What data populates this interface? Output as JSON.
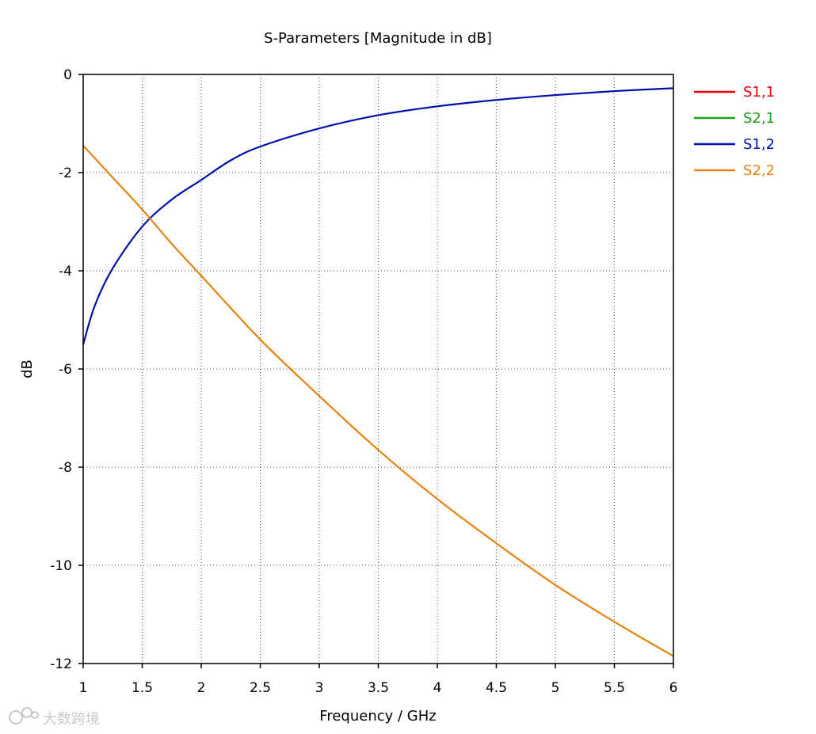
{
  "chart_data": {
    "type": "line",
    "title": "S-Parameters [Magnitude in dB]",
    "xlabel": "Frequency / GHz",
    "ylabel": "dB",
    "xlim": [
      1,
      6
    ],
    "ylim": [
      -12,
      0
    ],
    "xticks": [
      1,
      1.5,
      2,
      2.5,
      3,
      3.5,
      4,
      4.5,
      5,
      5.5,
      6
    ],
    "xtick_labels": [
      "1",
      "1.5",
      "2",
      "2.5",
      "3",
      "3.5",
      "4",
      "4.5",
      "5",
      "5.5",
      "6"
    ],
    "yticks": [
      0,
      -2,
      -4,
      -6,
      -8,
      -10,
      -12
    ],
    "ytick_labels": [
      "0",
      "-2",
      "-4",
      "-6",
      "-8",
      "-10",
      "-12"
    ],
    "grid": true,
    "legend_position": "right",
    "series": [
      {
        "name": "S1,1",
        "color": "#e8000b",
        "x": [],
        "values": []
      },
      {
        "name": "S2,1",
        "color": "#1a9f1a",
        "x": [],
        "values": []
      },
      {
        "name": "S1,2",
        "color": "#0010b0",
        "x": [
          1,
          1.1,
          1.25,
          1.5,
          1.75,
          2,
          2.25,
          2.5,
          3,
          3.5,
          4,
          4.5,
          5,
          5.5,
          6
        ],
        "values": [
          -5.5,
          -4.7,
          -3.95,
          -3.1,
          -2.55,
          -2.15,
          -1.75,
          -1.47,
          -1.1,
          -0.83,
          -0.65,
          -0.52,
          -0.42,
          -0.34,
          -0.28
        ]
      },
      {
        "name": "S2,2",
        "color": "#e8820c",
        "x": [
          1,
          1.25,
          1.5,
          1.75,
          2,
          2.5,
          3,
          3.5,
          4,
          4.5,
          5,
          5.5,
          6
        ],
        "values": [
          -1.45,
          -2.1,
          -2.75,
          -3.45,
          -4.1,
          -5.4,
          -6.55,
          -7.65,
          -8.65,
          -9.55,
          -10.4,
          -11.15,
          -11.85
        ]
      }
    ]
  },
  "watermark": {
    "text": "大数跨境"
  }
}
